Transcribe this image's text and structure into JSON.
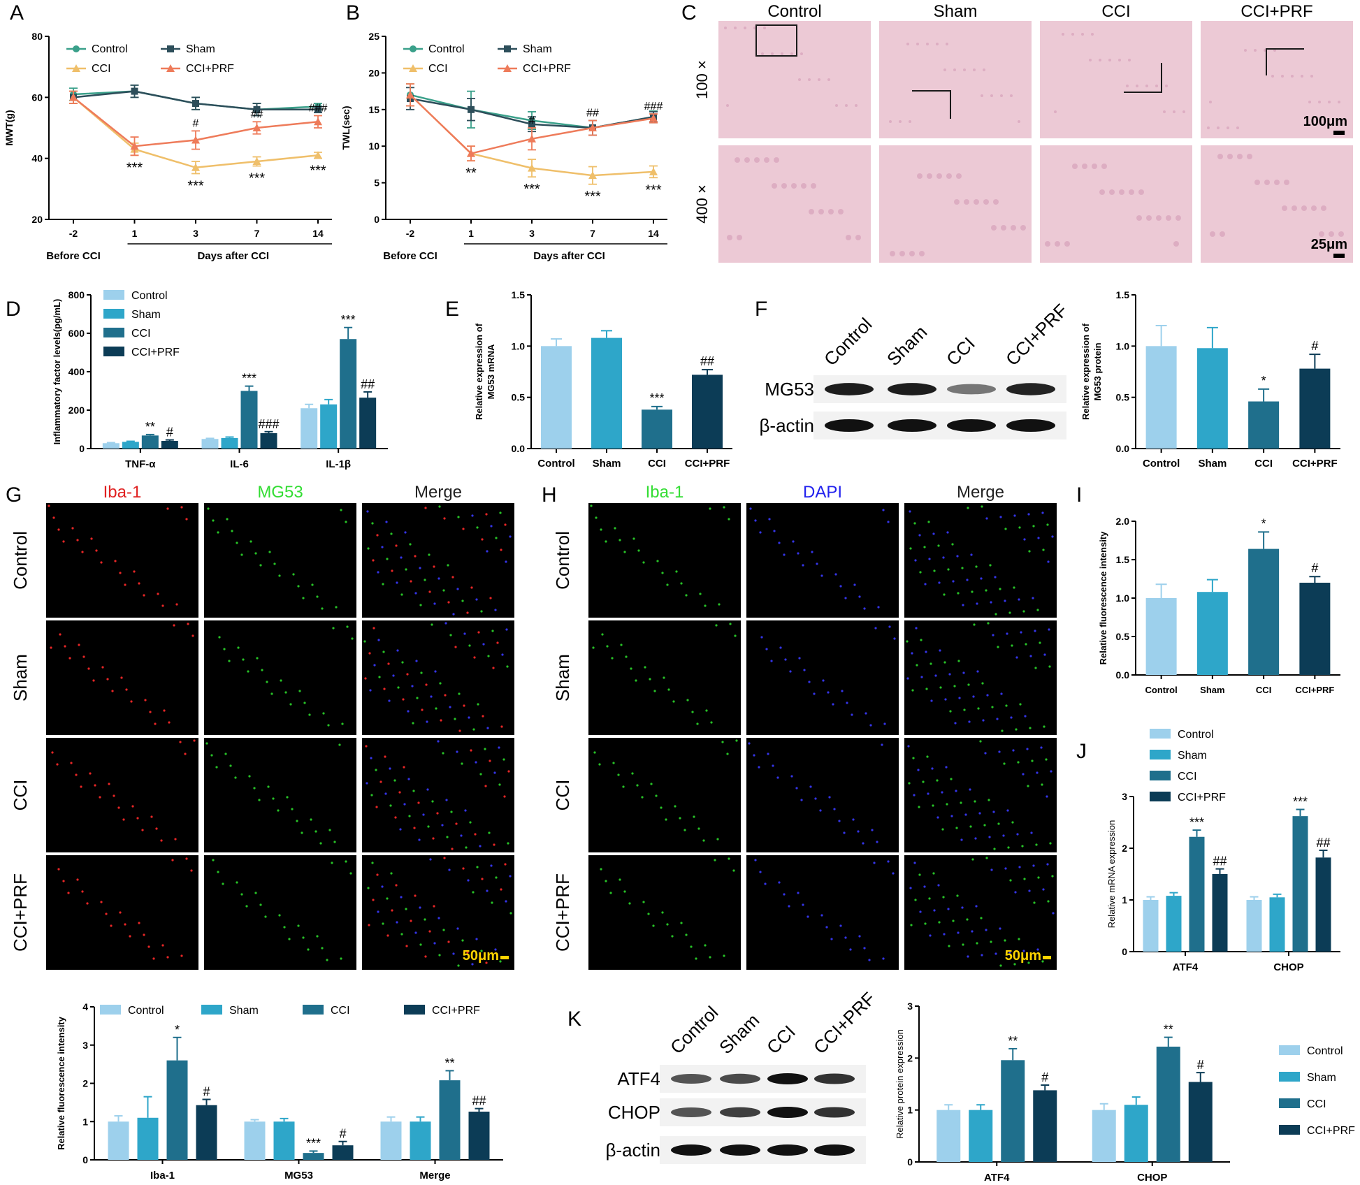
{
  "colors": {
    "control": "#9dd0ec",
    "sham": "#2ea6c9",
    "cci": "#1f6f8c",
    "cci_prf": "#0c3c56",
    "line_control": "#3aa08a",
    "line_sham": "#2d4e5a",
    "line_cci": "#efbf6a",
    "line_cci_prf": "#ee7b5a",
    "he_bg": "#ecc9d5",
    "he_lines": "#1a1a1a",
    "if_bg": "#000000",
    "scale_label": "#ffd400"
  },
  "panel_labels": {
    "A": "A",
    "B": "B",
    "C": "C",
    "D": "D",
    "E": "E",
    "F": "F",
    "G": "G",
    "H": "H",
    "I": "I",
    "J": "J",
    "K": "K"
  },
  "groups": [
    "Control",
    "Sham",
    "CCI",
    "CCI+PRF"
  ],
  "panel_c": {
    "columns": [
      "Control",
      "Sham",
      "CCI",
      "CCI+PRF"
    ],
    "rows": [
      "100 ×",
      "400 ×"
    ],
    "scale_100": "100μm",
    "scale_400": "25μm"
  },
  "panel_f": {
    "lane_labels": [
      "Control",
      "Sham",
      "CCI",
      "CCI+PRF"
    ],
    "band_labels": [
      "MG53",
      "β-actin"
    ]
  },
  "panel_g": {
    "col_labels": [
      "Iba-1",
      "MG53",
      "Merge"
    ],
    "col_colors": [
      "#e02020",
      "#33dd33",
      "#222222"
    ],
    "row_labels": [
      "Control",
      "Sham",
      "CCI",
      "CCI+PRF"
    ],
    "scale": "50μm"
  },
  "panel_h": {
    "col_labels": [
      "Iba-1",
      "DAPI",
      "Merge"
    ],
    "col_colors": [
      "#33dd33",
      "#2222ee",
      "#222222"
    ],
    "row_labels": [
      "Control",
      "Sham",
      "CCI",
      "CCI+PRF"
    ],
    "scale": "50μm"
  },
  "panel_k": {
    "lane_labels": [
      "Control",
      "Sham",
      "CCI",
      "CCI+PRF"
    ],
    "band_labels": [
      "ATF4",
      "CHOP",
      "β-actin"
    ]
  },
  "chart_data": [
    {
      "id": "A",
      "type": "line",
      "ylabel": "MWT(g)",
      "ylim": [
        20,
        80
      ],
      "yticks": [
        20,
        40,
        60,
        80
      ],
      "categories": [
        "-2",
        "1",
        "3",
        "7",
        "14"
      ],
      "group_labels": [
        "Before CCI",
        "Days after CCI"
      ],
      "legend": [
        "Control",
        "Sham",
        "CCI",
        "CCI+PRF"
      ],
      "series": [
        {
          "name": "Control",
          "values": [
            61,
            62,
            58,
            56,
            57
          ],
          "err": [
            2,
            2,
            2,
            2,
            1
          ]
        },
        {
          "name": "Sham",
          "values": [
            60,
            62,
            58,
            56,
            56
          ],
          "err": [
            2,
            2,
            2,
            2,
            1
          ]
        },
        {
          "name": "CCI",
          "values": [
            60,
            43,
            37,
            39,
            41
          ],
          "err": [
            2,
            2,
            2,
            1.5,
            1
          ]
        },
        {
          "name": "CCI+PRF",
          "values": [
            60,
            44,
            46,
            50,
            52
          ],
          "err": [
            2,
            3,
            3,
            2,
            2
          ]
        }
      ],
      "annotations_below": [
        "",
        "***",
        "***",
        "***",
        "***"
      ],
      "annotations_above": [
        "",
        "",
        "#",
        "##",
        "###"
      ]
    },
    {
      "id": "B",
      "type": "line",
      "ylabel": "TWL(sec)",
      "ylim": [
        0,
        25
      ],
      "yticks": [
        0,
        5,
        10,
        15,
        20,
        25
      ],
      "categories": [
        "-2",
        "1",
        "3",
        "7",
        "14"
      ],
      "group_labels": [
        "Before CCI",
        "Days after CCI"
      ],
      "legend": [
        "Control",
        "Sham",
        "CCI",
        "CCI+PRF"
      ],
      "series": [
        {
          "name": "Control",
          "values": [
            17,
            15,
            13.5,
            12.5,
            14
          ],
          "err": [
            1.5,
            2.5,
            1.2,
            1,
            0.8
          ]
        },
        {
          "name": "Sham",
          "values": [
            16.5,
            15,
            13,
            12.5,
            14
          ],
          "err": [
            1.5,
            1.5,
            1,
            1,
            0.7
          ]
        },
        {
          "name": "CCI",
          "values": [
            17,
            9,
            7,
            6,
            6.5
          ],
          "err": [
            1.5,
            1,
            1.2,
            1.2,
            0.8
          ]
        },
        {
          "name": "CCI+PRF",
          "values": [
            17,
            9,
            11,
            12.5,
            13.8
          ],
          "err": [
            1.5,
            1,
            1.5,
            1,
            0.6
          ]
        }
      ],
      "annotations_below": [
        "",
        "**",
        "***",
        "***",
        "***"
      ],
      "annotations_above": [
        "",
        "",
        "#",
        "##",
        "###"
      ]
    },
    {
      "id": "D",
      "type": "bar",
      "ylabel": "Inflammatory factor levels(pg/mL)",
      "ylim": [
        0,
        800
      ],
      "yticks": [
        0,
        200,
        400,
        600,
        800
      ],
      "categories": [
        "TNF-α",
        "IL-6",
        "IL-1β"
      ],
      "legend": [
        "Control",
        "Sham",
        "CCI",
        "CCI+PRF"
      ],
      "series": [
        {
          "name": "Control",
          "values": [
            28,
            50,
            210
          ],
          "err": [
            3,
            3,
            20
          ]
        },
        {
          "name": "Sham",
          "values": [
            35,
            55,
            230
          ],
          "err": [
            3,
            5,
            25
          ]
        },
        {
          "name": "CCI",
          "values": [
            68,
            300,
            570
          ],
          "err": [
            5,
            25,
            60
          ]
        },
        {
          "name": "CCI+PRF",
          "values": [
            40,
            80,
            265
          ],
          "err": [
            5,
            8,
            30
          ]
        }
      ],
      "marks": [
        [
          "",
          "",
          "**",
          "#"
        ],
        [
          "",
          "",
          "***",
          "###"
        ],
        [
          "",
          "",
          "***",
          "##"
        ]
      ]
    },
    {
      "id": "E",
      "type": "bar",
      "ylabel": "Relative expression of MG53 mRNA",
      "ylim": [
        0,
        1.5
      ],
      "yticks": [
        "0.0",
        "0.5",
        "1.0",
        "1.5"
      ],
      "categories": [
        "Control",
        "Sham",
        "CCI",
        "CCI+PRF"
      ],
      "values": [
        1.0,
        1.08,
        0.38,
        0.72
      ],
      "err": [
        0.07,
        0.07,
        0.03,
        0.05
      ],
      "marks": [
        "",
        "",
        "***",
        "##"
      ]
    },
    {
      "id": "F",
      "type": "bar",
      "ylabel": "Relative expression of MG53 protein",
      "ylim": [
        0,
        1.5
      ],
      "yticks": [
        "0.0",
        "0.5",
        "1.0",
        "1.5"
      ],
      "categories": [
        "Control",
        "Sham",
        "CCI",
        "CCI+PRF"
      ],
      "values": [
        1.0,
        0.98,
        0.46,
        0.78
      ],
      "err": [
        0.2,
        0.2,
        0.12,
        0.14
      ],
      "marks": [
        "",
        "",
        "*",
        "#"
      ]
    },
    {
      "id": "G2",
      "type": "bar",
      "ylabel": "Relative fluorescence intensity",
      "ylim": [
        0,
        4
      ],
      "yticks": [
        0,
        1,
        2,
        3,
        4
      ],
      "categories": [
        "Iba-1",
        "MG53",
        "Merge"
      ],
      "legend": [
        "Control",
        "Sham",
        "CCI",
        "CCI+PRF"
      ],
      "series": [
        {
          "name": "Control",
          "values": [
            1.0,
            1.0,
            1.0
          ],
          "err": [
            0.15,
            0.05,
            0.12
          ]
        },
        {
          "name": "Sham",
          "values": [
            1.1,
            1.0,
            1.0
          ],
          "err": [
            0.55,
            0.08,
            0.12
          ]
        },
        {
          "name": "CCI",
          "values": [
            2.6,
            0.18,
            2.08
          ],
          "err": [
            0.6,
            0.05,
            0.25
          ]
        },
        {
          "name": "CCI+PRF",
          "values": [
            1.43,
            0.38,
            1.26
          ],
          "err": [
            0.15,
            0.1,
            0.08
          ]
        }
      ],
      "marks": [
        [
          "",
          "",
          "*",
          "#"
        ],
        [
          "",
          "",
          "***",
          "#"
        ],
        [
          "",
          "",
          "**",
          "##"
        ]
      ]
    },
    {
      "id": "I",
      "type": "bar",
      "ylabel": "Relative fluorescence intensity",
      "ylim": [
        0,
        2
      ],
      "yticks": [
        "0.0",
        "0.5",
        "1.0",
        "1.5",
        "2.0"
      ],
      "categories": [
        "Control",
        "Sham",
        "CCI",
        "CCI+PRF"
      ],
      "values": [
        1.0,
        1.08,
        1.64,
        1.2
      ],
      "err": [
        0.18,
        0.16,
        0.22,
        0.08
      ],
      "marks": [
        "",
        "",
        "*",
        "#"
      ]
    },
    {
      "id": "J",
      "type": "bar",
      "ylabel": "Relative mRNA expression",
      "ylim": [
        0,
        3
      ],
      "yticks": [
        0,
        1,
        2,
        3
      ],
      "categories": [
        "ATF4",
        "CHOP"
      ],
      "legend": [
        "Control",
        "Sham",
        "CCI",
        "CCI+PRF"
      ],
      "series": [
        {
          "name": "Control",
          "values": [
            1.0,
            1.0
          ],
          "err": [
            0.06,
            0.06
          ]
        },
        {
          "name": "Sham",
          "values": [
            1.08,
            1.05
          ],
          "err": [
            0.06,
            0.06
          ]
        },
        {
          "name": "CCI",
          "values": [
            2.22,
            2.62
          ],
          "err": [
            0.13,
            0.13
          ]
        },
        {
          "name": "CCI+PRF",
          "values": [
            1.5,
            1.82
          ],
          "err": [
            0.1,
            0.14
          ]
        }
      ],
      "marks": [
        [
          "",
          "",
          "***",
          "##"
        ],
        [
          "",
          "",
          "***",
          "##"
        ]
      ]
    },
    {
      "id": "K",
      "type": "bar",
      "ylabel": "Relative protein expression",
      "ylim": [
        0,
        3
      ],
      "yticks": [
        0,
        1,
        2,
        3
      ],
      "categories": [
        "ATF4",
        "CHOP"
      ],
      "legend": [
        "Control",
        "Sham",
        "CCI",
        "CCI+PRF"
      ],
      "series": [
        {
          "name": "Control",
          "values": [
            1.0,
            1.0
          ],
          "err": [
            0.1,
            0.12
          ]
        },
        {
          "name": "Sham",
          "values": [
            1.0,
            1.1
          ],
          "err": [
            0.1,
            0.15
          ]
        },
        {
          "name": "CCI",
          "values": [
            1.96,
            2.22
          ],
          "err": [
            0.22,
            0.18
          ]
        },
        {
          "name": "CCI+PRF",
          "values": [
            1.38,
            1.54
          ],
          "err": [
            0.1,
            0.18
          ]
        }
      ],
      "marks": [
        [
          "",
          "",
          "**",
          "#"
        ],
        [
          "",
          "",
          "**",
          "#"
        ]
      ]
    }
  ]
}
